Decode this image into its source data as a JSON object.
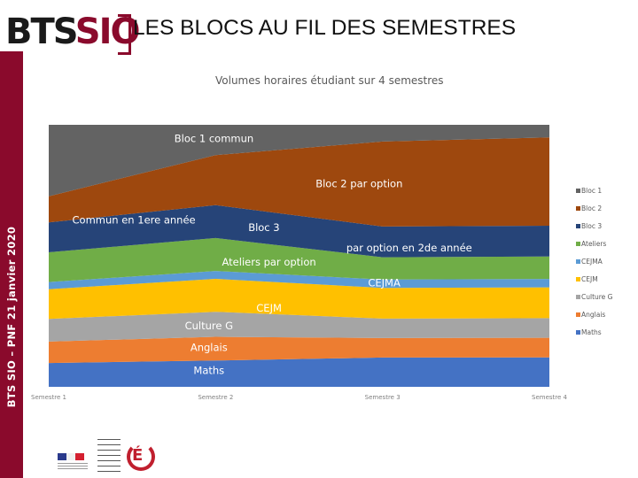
{
  "logo": {
    "bts": "BTS",
    "si": "SIO"
  },
  "page_title": "LES BLOCS AU FIL DES SEMESTRES",
  "sidebar_text": "BTS SIO – PNF 21 janvier 2020",
  "chart_data": {
    "type": "area",
    "title": "Volumes horaires étudiant sur 4 semestres",
    "categories": [
      "Semestre 1",
      "Semestre 2",
      "Semestre 3",
      "Semestre 4"
    ],
    "stacking": "stacked-100",
    "grid": false,
    "legend_position": "right",
    "series": [
      {
        "name": "Maths",
        "color": "#4472c4",
        "values": [
          10,
          10,
          10.5,
          10.5
        ]
      },
      {
        "name": "Anglais",
        "color": "#ed7d31",
        "values": [
          9,
          9,
          7,
          7
        ]
      },
      {
        "name": "Culture G",
        "color": "#a5a5a5",
        "values": [
          9.5,
          9.5,
          7,
          7
        ]
      },
      {
        "name": "CEJM",
        "color": "#ffc000",
        "values": [
          12.5,
          12.5,
          11,
          11
        ]
      },
      {
        "name": "CEJMA",
        "color": "#5b9bd5",
        "values": [
          3,
          3,
          3,
          3
        ]
      },
      {
        "name": "Ateliers",
        "color": "#70ad47",
        "values": [
          12.5,
          12.5,
          8,
          8
        ]
      },
      {
        "name": "Bloc 3",
        "color": "#264478",
        "values": [
          12.5,
          12.5,
          11,
          11
        ]
      },
      {
        "name": "Bloc 2",
        "color": "#9e480e",
        "values": [
          11,
          19,
          30.5,
          31.5
        ]
      },
      {
        "name": "Bloc 1",
        "color": "#636363",
        "values": [
          30,
          11.5,
          6,
          4.5
        ]
      }
    ],
    "annotations": [
      {
        "text": "Bloc 1 commun",
        "series": "Bloc 1"
      },
      {
        "text": "Bloc 2 par option",
        "series": "Bloc 2"
      },
      {
        "text": "Commun en 1ere année",
        "series": "Bloc 3"
      },
      {
        "text": "Bloc 3",
        "series": "Bloc 3"
      },
      {
        "text": "par option en 2de année",
        "series": "Bloc 3"
      },
      {
        "text": "Ateliers par option",
        "series": "Ateliers"
      },
      {
        "text": "CEJMA",
        "series": "CEJMA"
      },
      {
        "text": "CEJM",
        "series": "CEJM"
      },
      {
        "text": "Culture G",
        "series": "Culture G"
      },
      {
        "text": "Anglais",
        "series": "Anglais"
      },
      {
        "text": "Maths",
        "series": "Maths"
      }
    ]
  },
  "legend": [
    {
      "label": "Bloc 1",
      "color": "#636363"
    },
    {
      "label": "Bloc 2",
      "color": "#9e480e"
    },
    {
      "label": "Bloc 3",
      "color": "#264478"
    },
    {
      "label": "Ateliers",
      "color": "#70ad47"
    },
    {
      "label": "CEJMA",
      "color": "#5b9bd5"
    },
    {
      "label": "CEJM",
      "color": "#ffc000"
    },
    {
      "label": "Culture G",
      "color": "#a5a5a5"
    },
    {
      "label": "Anglais",
      "color": "#ed7d31"
    },
    {
      "label": "Maths",
      "color": "#4472c4"
    }
  ]
}
